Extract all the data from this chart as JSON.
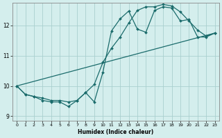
{
  "xlabel": "Humidex (Indice chaleur)",
  "bg_color": "#d4eeed",
  "line_color": "#1a6b6b",
  "grid_color": "#aacfcf",
  "xlim": [
    -0.5,
    23.5
  ],
  "ylim": [
    8.85,
    12.75
  ],
  "yticks": [
    9,
    10,
    11,
    12
  ],
  "xticks": [
    0,
    1,
    2,
    3,
    4,
    5,
    6,
    7,
    8,
    9,
    10,
    11,
    12,
    13,
    14,
    15,
    16,
    17,
    18,
    19,
    20,
    21,
    22,
    23
  ],
  "line1_x": [
    0,
    1,
    2,
    3,
    4,
    5,
    6,
    7,
    8,
    9,
    10,
    11,
    12,
    13,
    14,
    15,
    16,
    17,
    18,
    19,
    20,
    21,
    22,
    23
  ],
  "line1_y": [
    10.0,
    9.72,
    9.65,
    9.52,
    9.47,
    9.47,
    9.32,
    9.52,
    9.78,
    9.47,
    10.45,
    11.82,
    12.22,
    12.48,
    11.88,
    11.78,
    12.5,
    12.62,
    12.58,
    12.15,
    12.2,
    11.62,
    11.62,
    11.75
  ],
  "line2_x": [
    0,
    1,
    2,
    3,
    4,
    5,
    6,
    7,
    8,
    9,
    10,
    11,
    12,
    13,
    14,
    15,
    16,
    17,
    18,
    19,
    20,
    21,
    22,
    23
  ],
  "line2_y": [
    10.0,
    9.72,
    9.65,
    9.6,
    9.52,
    9.52,
    9.47,
    9.52,
    9.78,
    10.05,
    10.78,
    11.25,
    11.62,
    12.08,
    12.5,
    12.62,
    12.62,
    12.7,
    12.65,
    12.45,
    12.15,
    11.85,
    11.65,
    11.75
  ],
  "line3_y_start": 10.0,
  "line3_y_end": 11.75
}
